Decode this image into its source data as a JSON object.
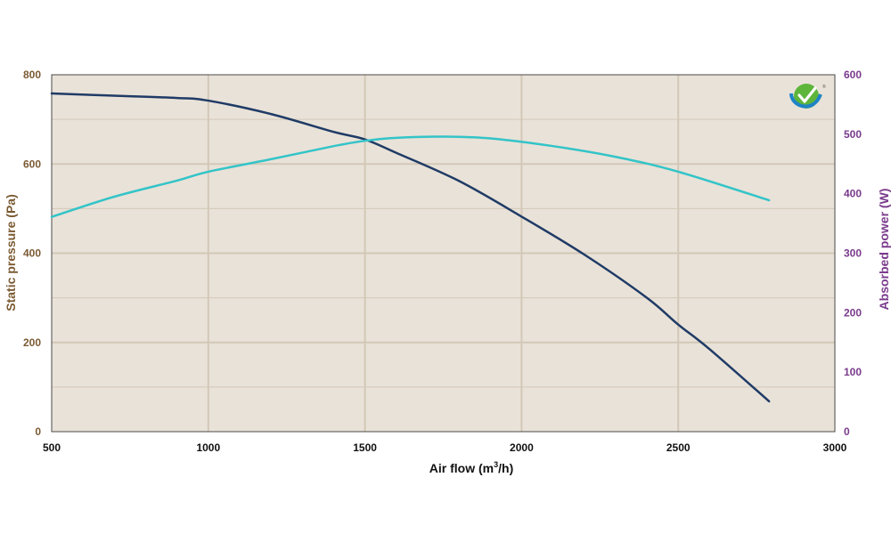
{
  "colors": {
    "plot_background": "#E9E2D8",
    "gridline": "#D3C8B7",
    "border": "#4A4A4A",
    "left_axis": "#7B5A33",
    "right_axis": "#7A3A8C",
    "x_axis": "#111111",
    "series_pressure": "#1F3B66",
    "series_power": "#33C4C8",
    "logo_green": "#5DB53A",
    "logo_blue": "#1E84C6"
  },
  "logo": {
    "icon": "checkmark-logo-icon",
    "mark": "®"
  },
  "chart_data": {
    "type": "line",
    "xlabel_text": "Air flow (m",
    "xlabel_sup": "3",
    "xlabel_tail": "/h)",
    "ylabel": "Static pressure (Pa)",
    "y2label": "Absorbed power (W)",
    "xlim": [
      500,
      3000
    ],
    "ylim": [
      0,
      800
    ],
    "y2lim": [
      0,
      600
    ],
    "x_ticks": [
      500,
      1000,
      1500,
      2000,
      2500,
      3000
    ],
    "y_ticks": [
      0,
      200,
      400,
      600,
      800
    ],
    "y2_ticks": [
      0,
      100,
      200,
      300,
      400,
      500,
      600
    ],
    "grid": true,
    "series": [
      {
        "key": "pressure",
        "axis": "left",
        "x": [
          500,
          700,
          900,
          1000,
          1200,
          1400,
          1500,
          1600,
          1800,
          2000,
          2200,
          2400,
          2500,
          2600,
          2790
        ],
        "y": [
          758,
          753,
          748,
          742,
          712,
          672,
          655,
          625,
          562,
          482,
          397,
          300,
          240,
          185,
          68
        ]
      },
      {
        "key": "power",
        "axis": "right",
        "x": [
          500,
          700,
          900,
          1000,
          1200,
          1400,
          1500,
          1600,
          1750,
          1900,
          2100,
          2300,
          2500,
          2790
        ],
        "y": [
          361,
          395,
          422,
          437,
          458,
          480,
          489,
          494,
          496,
          493,
          480,
          462,
          437,
          389
        ]
      }
    ]
  }
}
